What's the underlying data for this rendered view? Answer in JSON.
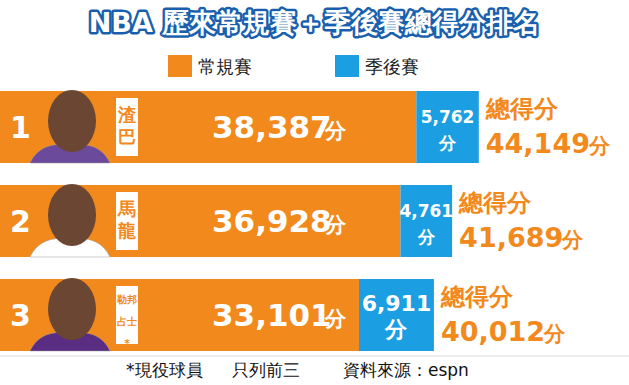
{
  "chart_data": {
    "type": "bar",
    "orientation": "horizontal",
    "stacked": true,
    "data_labels": true,
    "tick_labels": false,
    "grid": false,
    "legend": "top",
    "title": "NBA 歷來常規賽＋季後賽總得分排名",
    "ranks": [
      "1",
      "2",
      "3"
    ],
    "categories": [
      "渣巴",
      "馬龍",
      "勒邦占士*"
    ],
    "unit": "分",
    "series": [
      {
        "name": "常規賽",
        "color": "#f2891d",
        "values": [
          38387,
          36928,
          33101
        ],
        "value_labels": [
          "38,387",
          "36,928",
          "33,101"
        ]
      },
      {
        "name": "季後賽",
        "color": "#1c9ee3",
        "values": [
          5762,
          4761,
          6911
        ],
        "value_labels": [
          "5,762",
          "4,761",
          "6,911"
        ]
      }
    ],
    "total_label": "總得分",
    "totals": [
      44149,
      41689,
      40012
    ],
    "total_value_labels": [
      "44,149",
      "41,689",
      "40,012"
    ],
    "xlim": [
      0,
      58000
    ],
    "xticks": [],
    "notes": [
      "*現役球員",
      "只列前三",
      "資料來源：espn"
    ]
  }
}
